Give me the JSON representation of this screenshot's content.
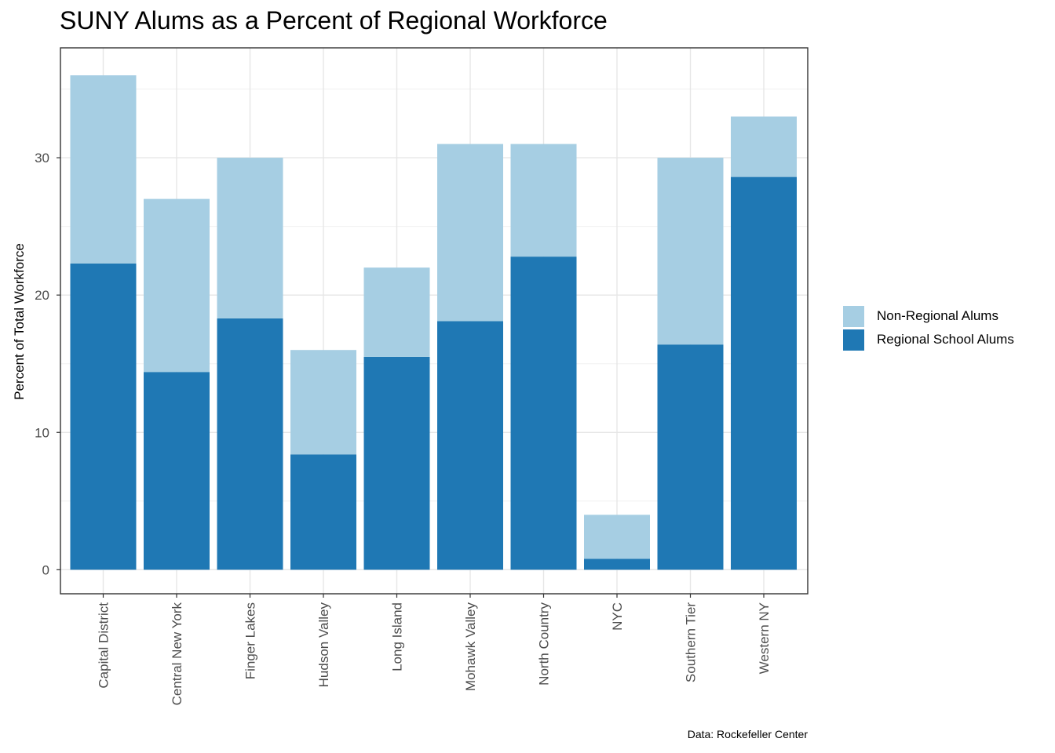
{
  "chart_data": {
    "type": "bar",
    "stacked": true,
    "title": "SUNY Alums as a Percent of Regional Workforce",
    "xlabel": "",
    "ylabel": "Percent of Total Workforce",
    "caption": "Data: Rockefeller Center",
    "categories": [
      "Capital District",
      "Central New York",
      "Finger Lakes",
      "Hudson Valley",
      "Long Island",
      "Mohawk Valley",
      "North Country",
      "NYC",
      "Southern Tier",
      "Western NY"
    ],
    "series": [
      {
        "name": "Regional School Alums",
        "color": "#1f78b4",
        "values": [
          22.3,
          14.4,
          18.3,
          8.4,
          15.5,
          18.1,
          22.8,
          0.8,
          16.4,
          28.6
        ]
      },
      {
        "name": "Non-Regional Alums",
        "color": "#a6cee3",
        "values": [
          13.7,
          12.6,
          11.7,
          7.6,
          6.5,
          12.9,
          8.2,
          3.2,
          13.6,
          4.4
        ]
      }
    ],
    "totals": [
      36,
      27,
      30,
      16,
      22,
      31,
      31,
      4,
      30,
      33
    ],
    "ylim": [
      -1.75,
      38
    ],
    "yticks": [
      0,
      10,
      20,
      30
    ],
    "grid": true,
    "legend": {
      "position": "right",
      "entries": [
        {
          "label": "Non-Regional Alums",
          "color": "#a6cee3"
        },
        {
          "label": "Regional School Alums",
          "color": "#1f78b4"
        }
      ]
    }
  }
}
